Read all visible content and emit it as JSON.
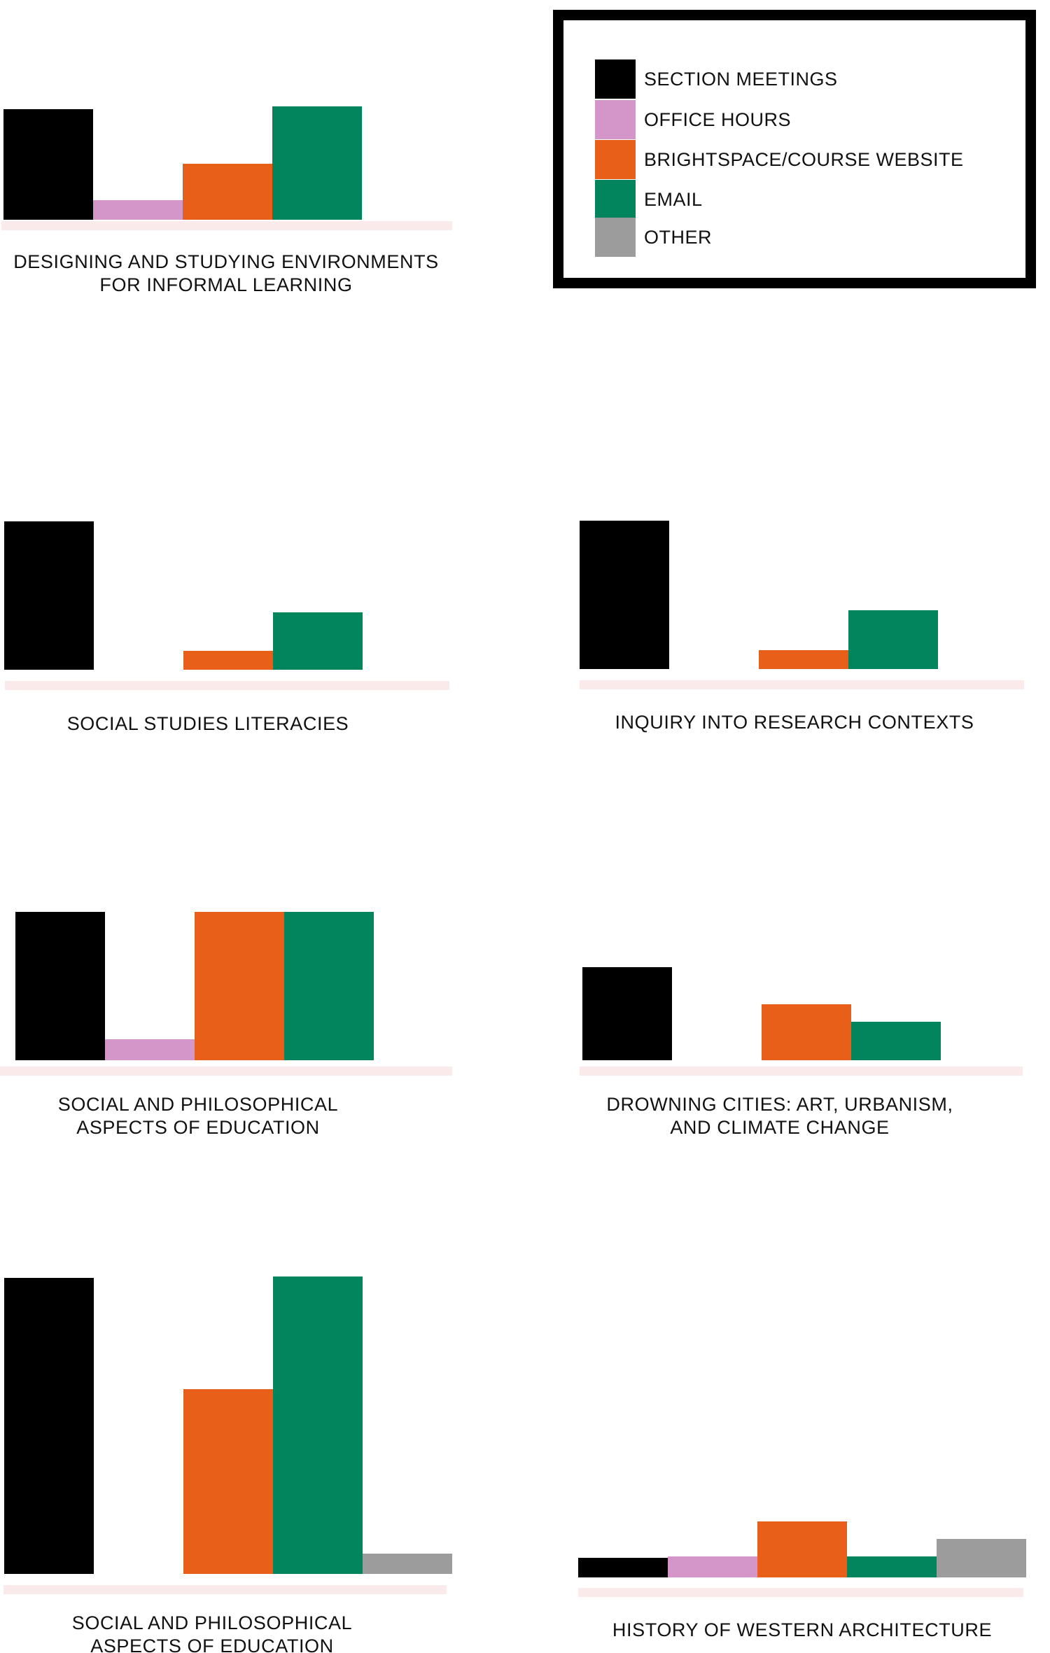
{
  "legend": [
    {
      "label": "SECTION MEETINGS",
      "color": "#000000"
    },
    {
      "label": "OFFICE HOURS",
      "color": "#d495c8"
    },
    {
      "label": "BRIGHTSPACE/COURSE WEBSITE",
      "color": "#e85f1a"
    },
    {
      "label": "EMAIL",
      "color": "#02845c"
    },
    {
      "label": "OTHER",
      "color": "#9c9c9c"
    }
  ],
  "baseline_color": "#fbeaea",
  "chart_data": [
    {
      "type": "bar",
      "title": "DESIGNING AND STUDYING ENVIRONMENTS\nFOR INFORMAL LEARNING",
      "categories": [
        "SECTION MEETINGS",
        "OFFICE HOURS",
        "BRIGHTSPACE/COURSE WEBSITE",
        "EMAIL",
        "OTHER"
      ],
      "values": [
        158,
        28,
        80,
        162,
        0
      ]
    },
    {
      "type": "bar",
      "title": "SOCIAL STUDIES LITERACIES",
      "categories": [
        "SECTION MEETINGS",
        "OFFICE HOURS",
        "BRIGHTSPACE/COURSE WEBSITE",
        "EMAIL",
        "OTHER"
      ],
      "values": [
        212,
        0,
        27,
        82,
        0
      ]
    },
    {
      "type": "bar",
      "title": "INQUIRY INTO RESEARCH CONTEXTS",
      "categories": [
        "SECTION MEETINGS",
        "OFFICE HOURS",
        "BRIGHTSPACE/COURSE WEBSITE",
        "EMAIL",
        "OTHER"
      ],
      "values": [
        212,
        0,
        27,
        84,
        0
      ]
    },
    {
      "type": "bar",
      "title": "SOCIAL AND PHILOSOPHICAL\nASPECTS OF EDUCATION",
      "categories": [
        "SECTION MEETINGS",
        "OFFICE HOURS",
        "BRIGHTSPACE/COURSE WEBSITE",
        "EMAIL",
        "OTHER"
      ],
      "values": [
        212,
        30,
        212,
        212,
        0
      ]
    },
    {
      "type": "bar",
      "title": "DROWNING CITIES: ART, URBANISM,\nAND CLIMATE CHANGE",
      "categories": [
        "SECTION MEETINGS",
        "OFFICE HOURS",
        "BRIGHTSPACE/COURSE WEBSITE",
        "EMAIL",
        "OTHER"
      ],
      "values": [
        133,
        0,
        80,
        55,
        0
      ]
    },
    {
      "type": "bar",
      "title": "SOCIAL AND PHILOSOPHICAL\nASPECTS OF EDUCATION",
      "categories": [
        "SECTION MEETINGS",
        "OFFICE HOURS",
        "BRIGHTSPACE/COURSE WEBSITE",
        "EMAIL",
        "OTHER"
      ],
      "values": [
        423,
        0,
        264,
        425,
        29
      ]
    },
    {
      "type": "bar",
      "title": "HISTORY OF WESTERN ARCHITECTURE",
      "categories": [
        "SECTION MEETINGS",
        "OFFICE HOURS",
        "BRIGHTSPACE/COURSE WEBSITE",
        "EMAIL",
        "OTHER"
      ],
      "values": [
        28,
        30,
        80,
        30,
        55
      ]
    }
  ]
}
